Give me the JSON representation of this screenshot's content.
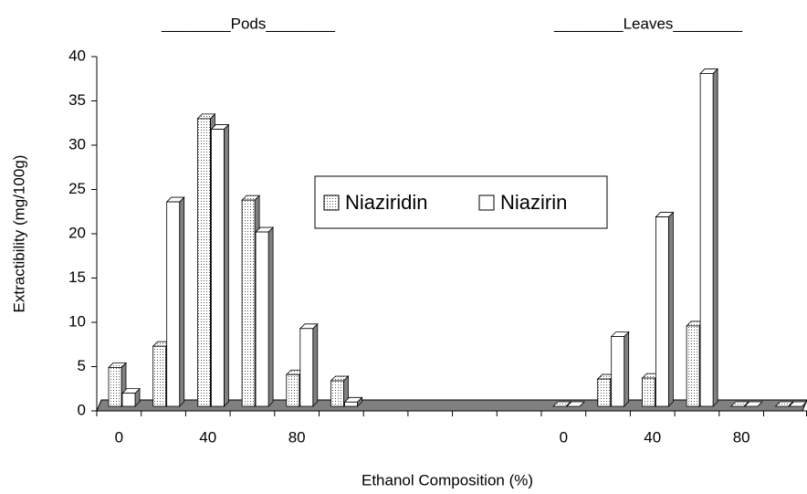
{
  "chart_data": {
    "type": "bar",
    "annotations": [
      "________Pods________",
      "________Leaves________"
    ],
    "ylabel": "Extractibility (mg/100g)",
    "xlabel": "Ethanol Composition (%)",
    "categories": [
      "0",
      null,
      "40",
      null,
      "80",
      null,
      null,
      null,
      null,
      null,
      "0",
      null,
      "40",
      null,
      "80",
      null
    ],
    "series": [
      {
        "name": "Niaziridin",
        "color": "#e6e6e6",
        "values": [
          4.9,
          7.3,
          33,
          23.8,
          4.1,
          3.4,
          null,
          null,
          null,
          null,
          0,
          3.6,
          3.7,
          9.6,
          0,
          0
        ]
      },
      {
        "name": "Niazirin",
        "color": "#ffffff",
        "values": [
          2,
          23.6,
          31.8,
          20.2,
          9.3,
          1.0,
          null,
          null,
          null,
          null,
          0,
          8.4,
          21.9,
          38.1,
          0,
          0
        ]
      }
    ],
    "ylim": [
      0,
      40
    ],
    "yticks": [
      0,
      5,
      10,
      15,
      20,
      25,
      30,
      35,
      40
    ],
    "legend": "center"
  }
}
